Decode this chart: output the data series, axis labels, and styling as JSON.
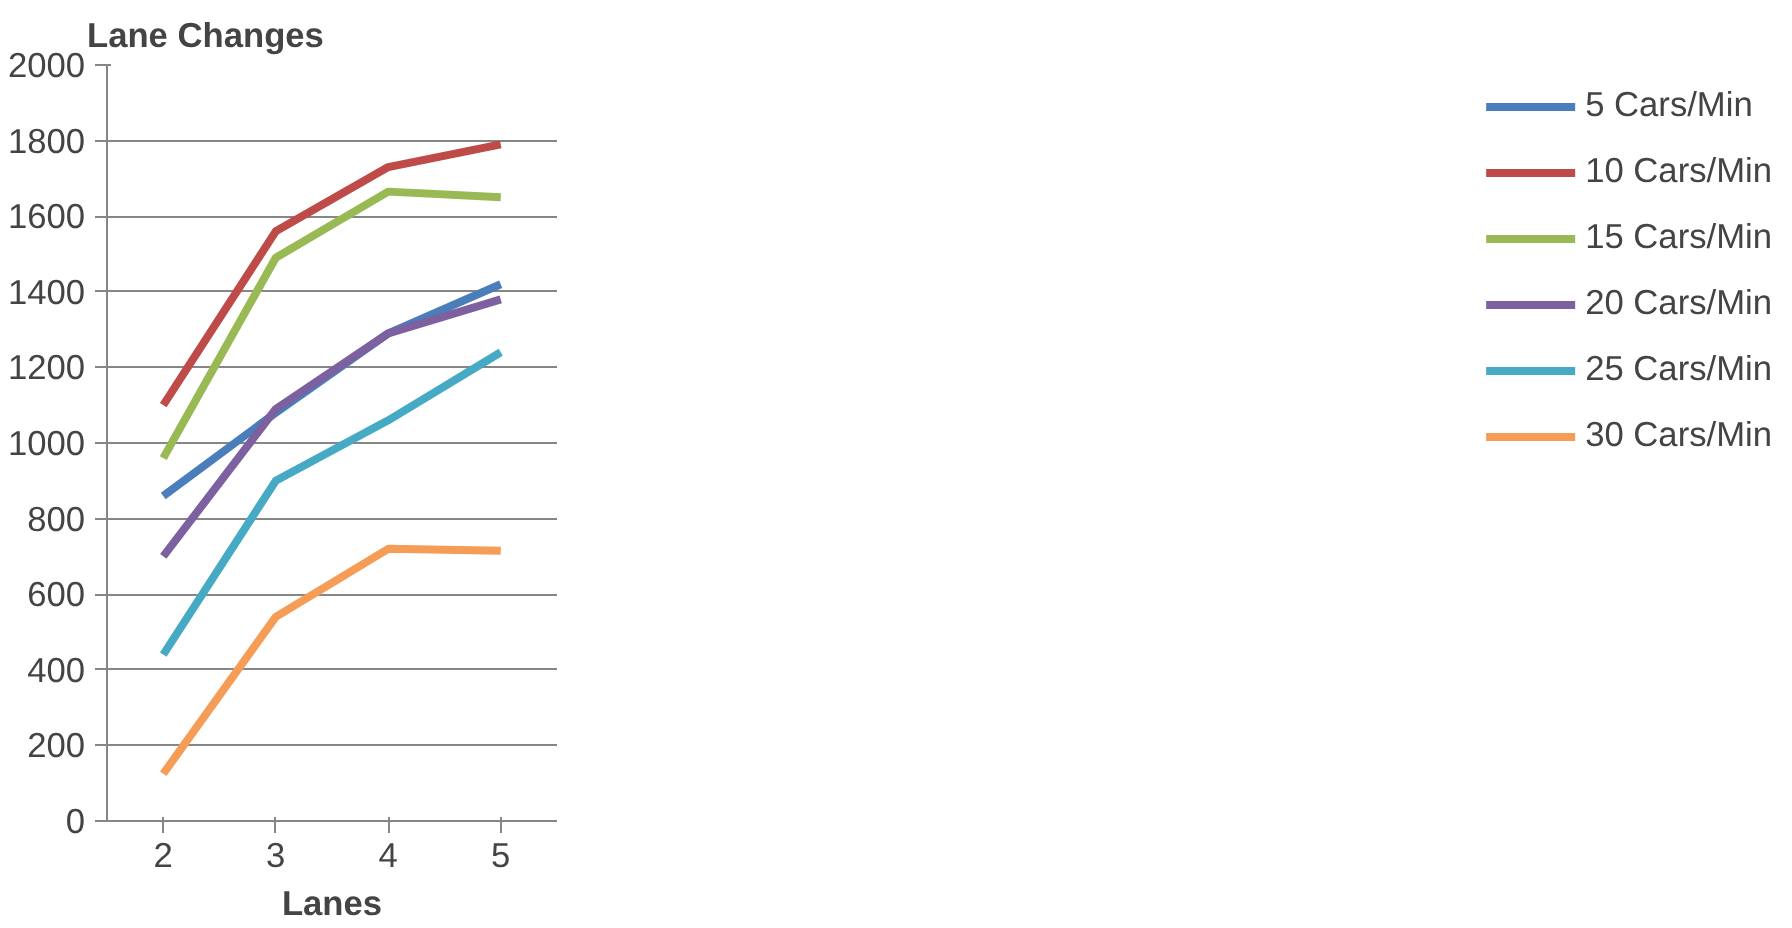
{
  "chart_data": {
    "type": "line",
    "ylabel": "Lane Changes",
    "xlabel": "Lanes",
    "categories": [
      "2",
      "3",
      "4",
      "5"
    ],
    "series": [
      {
        "name": "5 Cars/Min",
        "color": "#4a7ebb",
        "values": [
          860,
          1080,
          1290,
          1420
        ]
      },
      {
        "name": "10 Cars/Min",
        "color": "#be4b48",
        "values": [
          1100,
          1560,
          1730,
          1790
        ]
      },
      {
        "name": "15 Cars/Min",
        "color": "#98b954",
        "values": [
          960,
          1490,
          1665,
          1650
        ]
      },
      {
        "name": "20 Cars/Min",
        "color": "#7d60a0",
        "values": [
          700,
          1090,
          1290,
          1380
        ]
      },
      {
        "name": "25 Cars/Min",
        "color": "#46aac5",
        "values": [
          440,
          900,
          1060,
          1240
        ]
      },
      {
        "name": "30 Cars/Min",
        "color": "#f59d56",
        "values": [
          125,
          540,
          720,
          715
        ]
      }
    ],
    "ylim": [
      0,
      2000
    ],
    "yticks": [
      0,
      200,
      400,
      600,
      800,
      1000,
      1200,
      1400,
      1600,
      1800,
      2000
    ],
    "grid": "y",
    "legend": "right",
    "marker": "none",
    "line_style": "solid"
  }
}
